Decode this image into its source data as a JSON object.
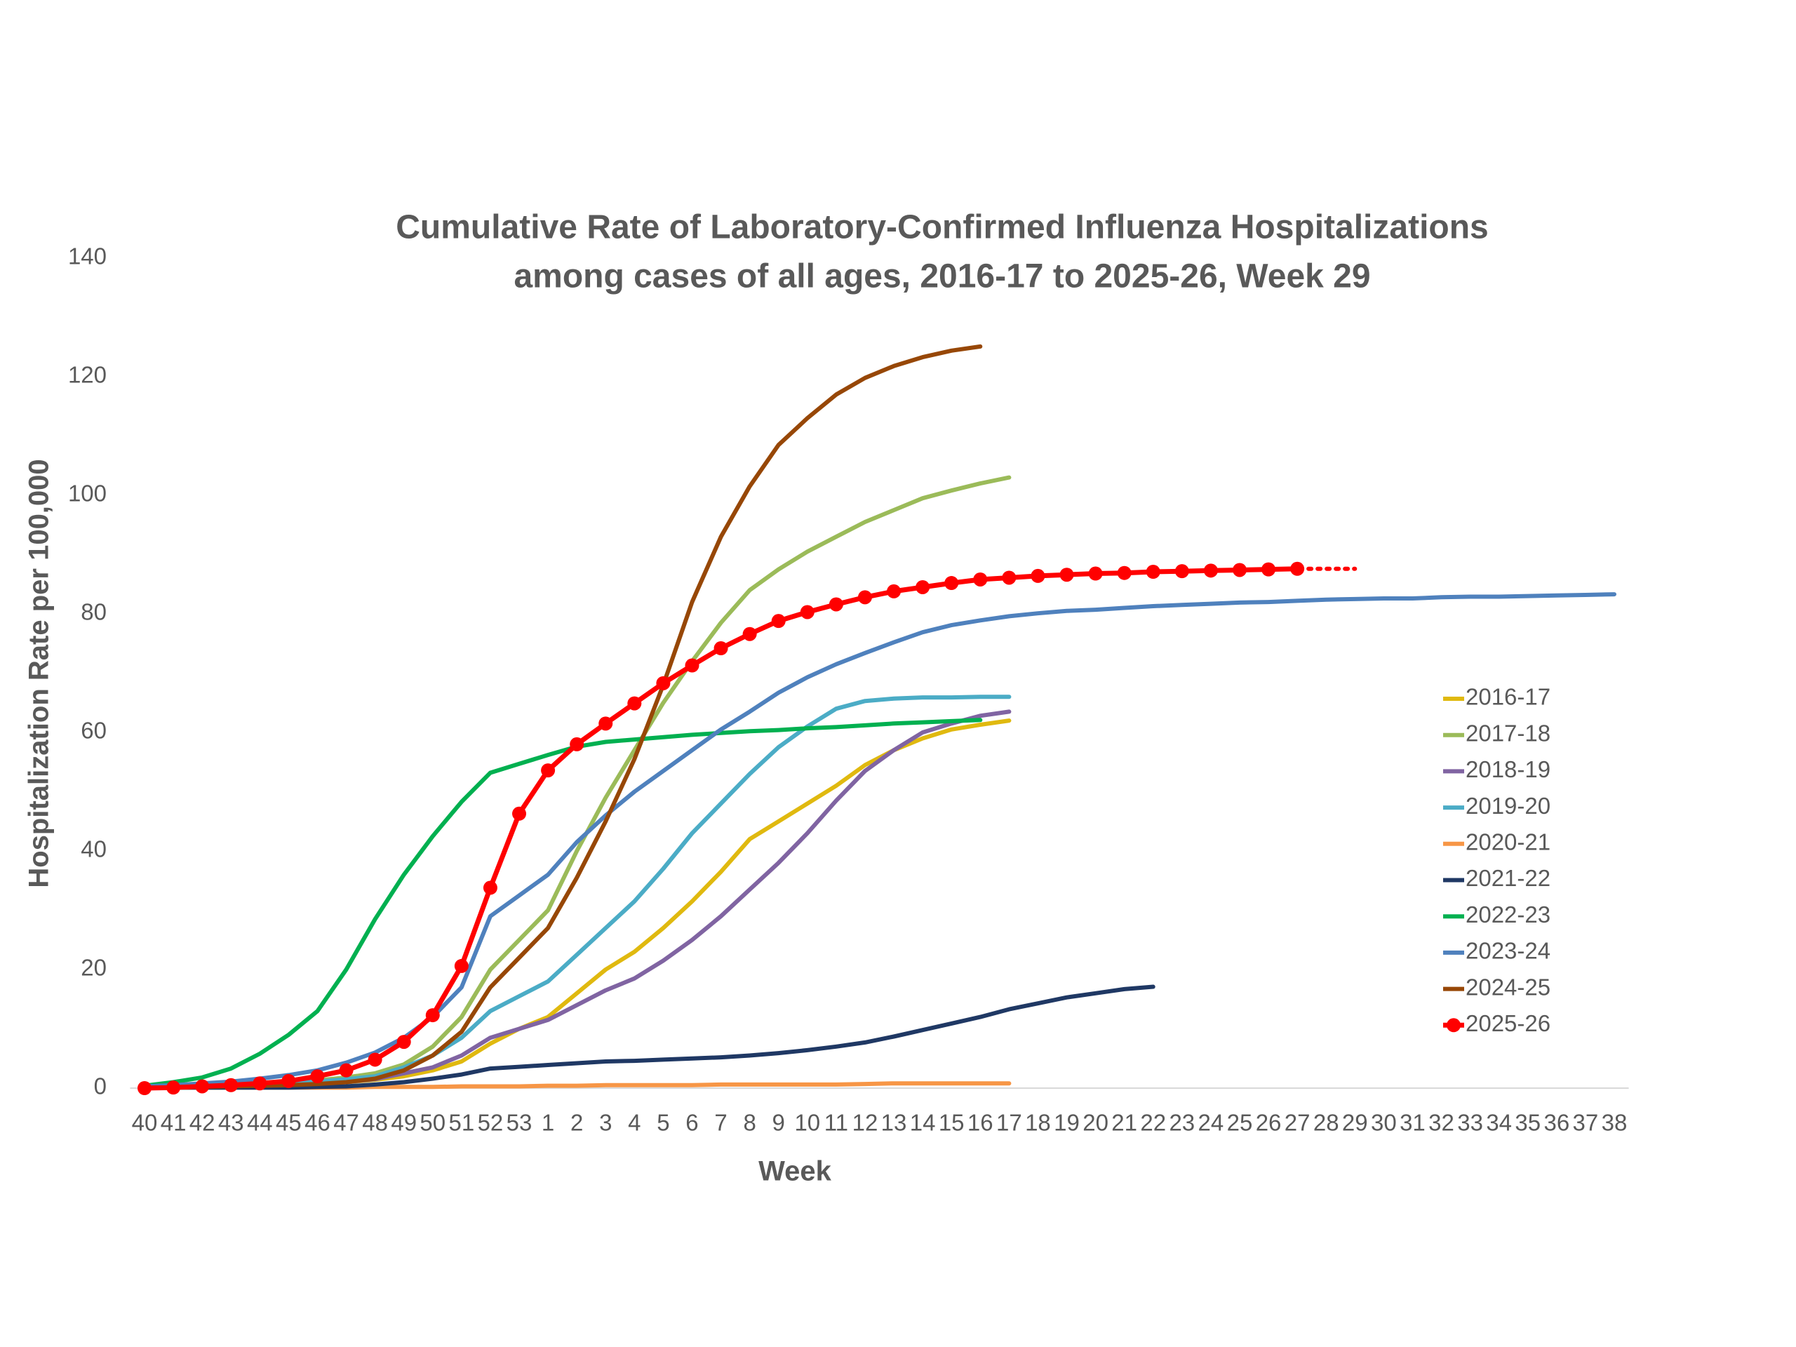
{
  "chart_data": {
    "type": "line",
    "title": [
      "Cumulative Rate of Laboratory-Confirmed Influenza Hospitalizations",
      "among cases of all ages, 2016-17 to 2025-26, Week 29"
    ],
    "x_label": "Week",
    "y_label": "Hospitalization Rate per 100,000",
    "categories": [
      "40",
      "41",
      "42",
      "43",
      "44",
      "45",
      "46",
      "47",
      "48",
      "49",
      "50",
      "51",
      "52",
      "53",
      "1",
      "2",
      "3",
      "4",
      "5",
      "6",
      "7",
      "8",
      "9",
      "10",
      "11",
      "12",
      "13",
      "14",
      "15",
      "16",
      "17",
      "18",
      "19",
      "20",
      "21",
      "22",
      "23",
      "24",
      "25",
      "26",
      "27",
      "28",
      "29",
      "30",
      "31",
      "32",
      "33",
      "34",
      "35",
      "36",
      "37",
      "38"
    ],
    "ylim": [
      0,
      140
    ],
    "yticks": [
      0,
      20,
      40,
      60,
      80,
      100,
      120,
      140
    ],
    "grid": false,
    "legend": "right",
    "series": [
      {
        "name": "2016-17",
        "color": "#e0b90f",
        "values": [
          0.1,
          0.1,
          0.2,
          0.3,
          0.4,
          0.6,
          0.8,
          1.0,
          1.4,
          2,
          3,
          4.5,
          7.5,
          10,
          12,
          16,
          20,
          23,
          27,
          31.5,
          36.5,
          42,
          45,
          48,
          51,
          54.5,
          57,
          59,
          60.5,
          61.3,
          62,
          null,
          null,
          null,
          null,
          null,
          null,
          null,
          null,
          null,
          null,
          null,
          null,
          null,
          null,
          null,
          null,
          null,
          null,
          null,
          null,
          null
        ]
      },
      {
        "name": "2017-18",
        "color": "#9bbb59",
        "values": [
          0.2,
          0.3,
          0.4,
          0.6,
          0.8,
          1.0,
          1.3,
          1.8,
          2.5,
          4,
          7,
          12,
          20,
          25,
          30,
          40,
          49,
          57,
          65,
          72,
          78.5,
          84,
          87.5,
          90.5,
          93,
          95.5,
          97.5,
          99.5,
          100.8,
          102,
          103,
          null,
          null,
          null,
          null,
          null,
          null,
          null,
          null,
          null,
          null,
          null,
          null,
          null,
          null,
          null,
          null,
          null,
          null,
          null,
          null,
          null
        ]
      },
      {
        "name": "2018-19",
        "color": "#8064a2",
        "values": [
          0.1,
          0.1,
          0.2,
          0.3,
          0.4,
          0.5,
          0.7,
          1.0,
          1.5,
          2.5,
          3.5,
          5.5,
          8.5,
          10,
          11.5,
          14,
          16.5,
          18.5,
          21.5,
          25,
          29,
          33.5,
          38,
          43,
          48.5,
          53.5,
          57,
          60,
          61.5,
          62.8,
          63.5,
          null,
          null,
          null,
          null,
          null,
          null,
          null,
          null,
          null,
          null,
          null,
          null,
          null,
          null,
          null,
          null,
          null,
          null,
          null,
          null,
          null
        ]
      },
      {
        "name": "2019-20",
        "color": "#4bacc6",
        "values": [
          0.2,
          0.3,
          0.4,
          0.5,
          0.7,
          0.9,
          1.1,
          1.5,
          2,
          3.5,
          5.5,
          8.5,
          13,
          15.5,
          18,
          22.5,
          27,
          31.5,
          37,
          43,
          48,
          53,
          57.5,
          61,
          64,
          65.3,
          65.7,
          65.9,
          65.9,
          66,
          66,
          null,
          null,
          null,
          null,
          null,
          null,
          null,
          null,
          null,
          null,
          null,
          null,
          null,
          null,
          null,
          null,
          null,
          null,
          null,
          null,
          null
        ]
      },
      {
        "name": "2020-21",
        "color": "#f79646",
        "values": [
          0.1,
          0.1,
          0.1,
          0.1,
          0.1,
          0.1,
          0.1,
          0.1,
          0.2,
          0.2,
          0.2,
          0.3,
          0.3,
          0.3,
          0.4,
          0.4,
          0.5,
          0.5,
          0.5,
          0.5,
          0.6,
          0.6,
          0.6,
          0.6,
          0.6,
          0.7,
          0.8,
          0.8,
          0.8,
          0.8,
          0.8,
          null,
          null,
          null,
          null,
          null,
          null,
          null,
          null,
          null,
          null,
          null,
          null,
          null,
          null,
          null,
          null,
          null,
          null,
          null,
          null,
          null
        ]
      },
      {
        "name": "2021-22",
        "color": "#1f3864",
        "values": [
          0.1,
          0.1,
          0.1,
          0.1,
          0.1,
          0.1,
          0.2,
          0.3,
          0.6,
          1,
          1.6,
          2.3,
          3.3,
          3.6,
          3.9,
          4.2,
          4.5,
          4.6,
          4.8,
          5,
          5.2,
          5.5,
          5.9,
          6.4,
          7,
          7.7,
          8.7,
          9.8,
          10.9,
          12,
          13.3,
          14.3,
          15.3,
          16,
          16.7,
          17.1,
          null,
          null,
          null,
          null,
          null,
          null,
          null,
          null,
          null,
          null,
          null,
          null,
          null,
          null,
          null,
          null
        ]
      },
      {
        "name": "2022-23",
        "color": "#00b050",
        "values": [
          0.4,
          1,
          1.8,
          3.3,
          5.8,
          9,
          13,
          20,
          28.5,
          36,
          42.5,
          48.3,
          53.2,
          54.7,
          56.2,
          57.6,
          58.4,
          58.8,
          59.2,
          59.6,
          59.9,
          60.2,
          60.4,
          60.7,
          60.9,
          61.2,
          61.5,
          61.7,
          61.9,
          62.1,
          null,
          null,
          null,
          null,
          null,
          null,
          null,
          null,
          null,
          null,
          null,
          null,
          null,
          null,
          null,
          null,
          null,
          null,
          null,
          null,
          null,
          null
        ]
      },
      {
        "name": "2023-24",
        "color": "#4f81bd",
        "values": [
          0.3,
          0.5,
          0.8,
          1.1,
          1.6,
          2.2,
          3,
          4.3,
          6,
          8.5,
          12,
          17,
          29,
          32.5,
          36,
          41.5,
          46,
          50,
          53.5,
          57,
          60.5,
          63.5,
          66.7,
          69.3,
          71.5,
          73.4,
          75.2,
          76.9,
          78.1,
          78.9,
          79.6,
          80.1,
          80.5,
          80.7,
          81,
          81.3,
          81.5,
          81.7,
          81.9,
          82,
          82.2,
          82.4,
          82.5,
          82.6,
          82.6,
          82.8,
          82.9,
          82.9,
          83,
          83.1,
          83.2,
          83.3
        ]
      },
      {
        "name": "2024-25",
        "color": "#974706",
        "values": [
          0.1,
          0.1,
          0.2,
          0.3,
          0.4,
          0.5,
          0.7,
          1.0,
          1.6,
          3,
          5.5,
          9.5,
          17,
          22,
          27,
          35.5,
          45,
          55.5,
          68,
          82,
          93,
          101.5,
          108.5,
          113,
          117,
          119.8,
          121.8,
          123.3,
          124.4,
          125.1,
          null,
          null,
          null,
          null,
          null,
          null,
          null,
          null,
          null,
          null,
          null,
          null,
          null,
          null,
          null,
          null,
          null,
          null,
          null,
          null,
          null,
          null
        ]
      },
      {
        "name": "2025-26",
        "color": "#ff0000",
        "markers": true,
        "values": [
          0,
          0.1,
          0.3,
          0.5,
          0.8,
          1.2,
          2,
          3,
          4.8,
          7.8,
          12.3,
          20.6,
          33.8,
          46.3,
          53.6,
          58,
          61.5,
          64.9,
          68.3,
          71.3,
          74.2,
          76.6,
          78.8,
          80.3,
          81.6,
          82.8,
          83.8,
          84.5,
          85.2,
          85.8,
          86.1,
          86.4,
          86.6,
          86.8,
          86.9,
          87.1,
          87.2,
          87.3,
          87.4,
          87.5,
          87.6,
          null,
          null,
          null,
          null,
          null,
          null,
          null,
          null,
          null,
          null,
          null
        ]
      }
    ]
  }
}
